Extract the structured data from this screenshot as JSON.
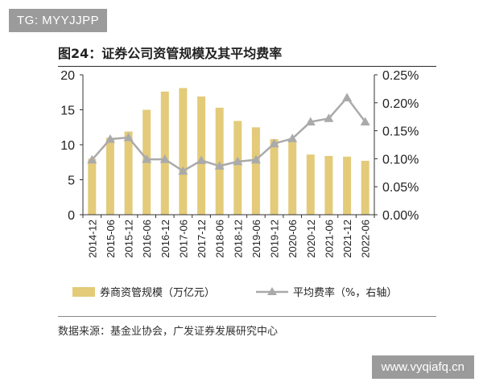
{
  "watermarks": {
    "top": "TG: MYYJJPP",
    "bottom": "www.vyqiafq.cn"
  },
  "figure": {
    "title": "图24：证券公司资管规模及其平均费率",
    "source": "数据来源：基金业协会，广发证券发展研究中心"
  },
  "colors": {
    "bar": "#E3CB7A",
    "line": "#AAAAAA",
    "axis": "#333333"
  },
  "chart_data": {
    "type": "bar",
    "categories": [
      "2014-12",
      "2015-06",
      "2015-12",
      "2016-06",
      "2016-12",
      "2017-06",
      "2017-12",
      "2018-06",
      "2018-12",
      "2019-06",
      "2019-12",
      "2020-06",
      "2020-12",
      "2021-06",
      "2021-12",
      "2022-06"
    ],
    "series": [
      {
        "name": "券商资管规模（万亿元）",
        "type": "bar",
        "axis": "left",
        "values": [
          8.0,
          11.0,
          11.9,
          15.0,
          17.6,
          18.1,
          16.9,
          15.3,
          13.4,
          12.5,
          10.8,
          10.6,
          8.6,
          8.4,
          8.3,
          7.7
        ]
      },
      {
        "name": "平均费率（%，右轴）",
        "type": "line",
        "axis": "right",
        "values": [
          0.098,
          0.135,
          0.138,
          0.099,
          0.099,
          0.078,
          0.097,
          0.087,
          0.095,
          0.098,
          0.127,
          0.136,
          0.166,
          0.172,
          0.209,
          0.166
        ]
      }
    ],
    "y_left": {
      "min": 0,
      "max": 20,
      "ticks": [
        "0",
        "5",
        "10",
        "15",
        "20"
      ]
    },
    "y_right": {
      "min": 0,
      "max": 0.25,
      "ticks": [
        "0.00%",
        "0.05%",
        "0.10%",
        "0.15%",
        "0.20%",
        "0.25%"
      ]
    },
    "grid": false,
    "legend_position": "bottom"
  }
}
